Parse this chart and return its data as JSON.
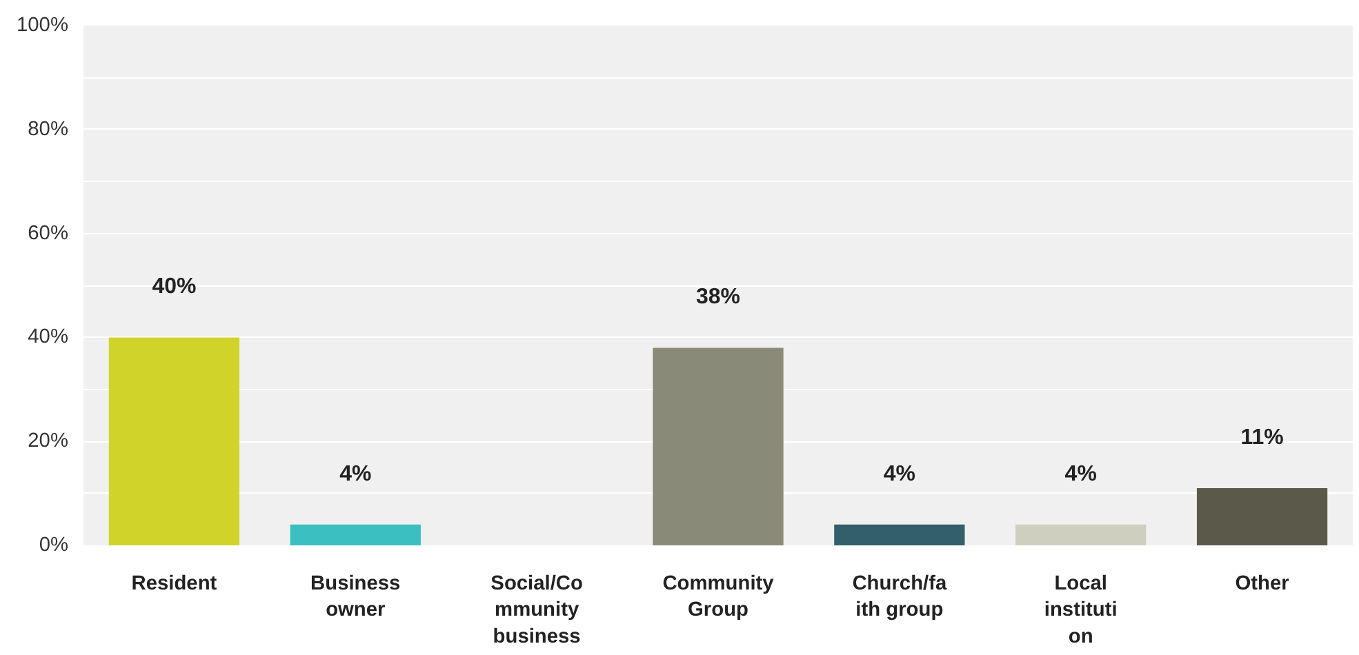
{
  "chart_data": {
    "type": "bar",
    "categories": [
      "Resident",
      "Business owner",
      "Social/Community business",
      "Community Group",
      "Church/faith group",
      "Local institution",
      "Other"
    ],
    "values": [
      40,
      4,
      0,
      38,
      4,
      4,
      11
    ],
    "colors": [
      "#d0d42a",
      "#3bbfc0",
      "#9a9a9a",
      "#8a8a78",
      "#335e6b",
      "#cfcfc0",
      "#5b5a4a"
    ],
    "value_labels": [
      "40%",
      "4%",
      null,
      "38%",
      "4%",
      "4%",
      "11%"
    ],
    "ylim": [
      0,
      100
    ],
    "yticks": [
      "0%",
      {
        "value": 10,
        "label": null
      },
      {
        "value": 20,
        "label": "20%"
      },
      {
        "value": 30,
        "label": null
      },
      {
        "value": 40,
        "label": "40%"
      },
      {
        "value": 50,
        "label": null
      },
      {
        "value": 60,
        "label": "60%"
      },
      {
        "value": 70,
        "label": null
      },
      {
        "value": 80,
        "label": "80%"
      },
      {
        "value": 90,
        "label": null
      },
      {
        "value": 100,
        "label": "100%"
      }
    ],
    "grid": "y"
  }
}
